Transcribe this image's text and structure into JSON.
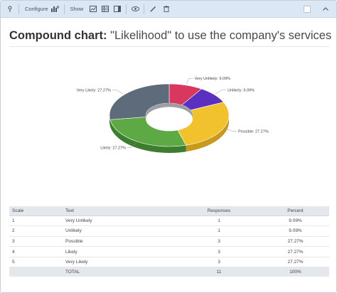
{
  "toolbar": {
    "configure_label": "Configure",
    "show_label": "Show"
  },
  "title": {
    "bold": "Compound chart:",
    "rest": " \"Likelihood\" to use the company's services"
  },
  "chart_data": {
    "type": "pie",
    "categories": [
      "Very Unlikely",
      "Unlikely",
      "Possible",
      "Likely",
      "Very Likely"
    ],
    "values": [
      1,
      1,
      3,
      3,
      3
    ],
    "labels": [
      "Very Unlikely: 9.09%",
      "Unlikely: 9.09%",
      "Possible: 27.27%",
      "Likely: 27.27%",
      "Very Likely: 27.27%"
    ],
    "colors": [
      "#d9385e",
      "#5b2fc0",
      "#f2c12e",
      "#5ca945",
      "#5e6b7a"
    ],
    "side_colors": [
      "#a32847",
      "#3f2188",
      "#c79a1c",
      "#3e7d2f",
      "#424c58"
    ]
  },
  "table": {
    "headers": [
      "Scale",
      "Text",
      "Responses",
      "Percent"
    ],
    "rows": [
      [
        "1",
        "Very Unlikely",
        "1",
        "9.09%"
      ],
      [
        "2",
        "Unlikely",
        "1",
        "9.09%"
      ],
      [
        "3",
        "Possible",
        "3",
        "27.27%"
      ],
      [
        "4",
        "Likely",
        "3",
        "27.27%"
      ],
      [
        "5",
        "Very Likely",
        "3",
        "27.27%"
      ]
    ],
    "total": [
      "",
      "TOTAL",
      "11",
      "100%"
    ]
  }
}
